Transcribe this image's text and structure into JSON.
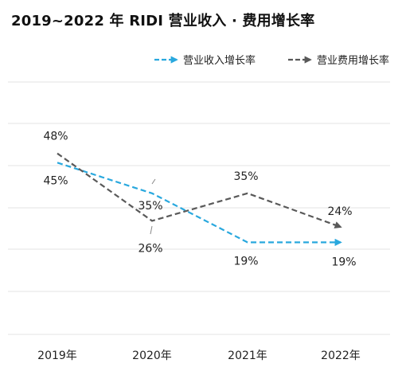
{
  "chart_data": {
    "type": "line",
    "title": "2019~2022 年 RIDI 营业收入 · 费用增长率",
    "categories": [
      "2019年",
      "2020年",
      "2021年",
      "2022年"
    ],
    "series": [
      {
        "name": "营业收入增长率",
        "values": [
          45,
          35,
          19,
          19
        ],
        "labels": [
          "45%",
          "35%",
          "19%",
          "19%"
        ],
        "color": "#29a8de"
      },
      {
        "name": "营业费用增长率",
        "values": [
          48,
          26,
          35,
          24
        ],
        "labels": [
          "48%",
          "26%",
          "35%",
          "24%"
        ],
        "color": "#595959"
      }
    ],
    "ylim": [
      10,
      55
    ],
    "grid": true,
    "legend": "top-right"
  }
}
